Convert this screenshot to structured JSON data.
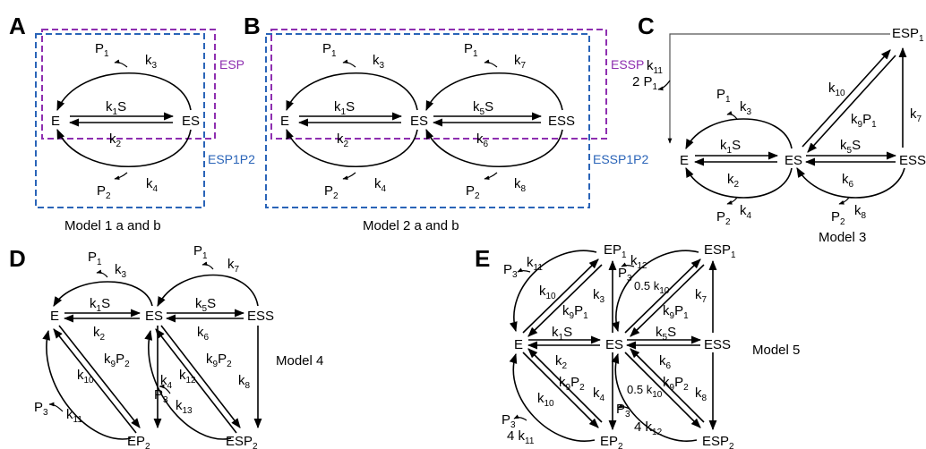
{
  "panels": {
    "A": "A",
    "B": "B",
    "C": "C",
    "D": "D",
    "E": "E"
  },
  "captions": {
    "model1": "Model 1 a and b",
    "model2": "Model 2 a and b",
    "model3": "Model 3",
    "model4": "Model 4",
    "model5": "Model 5"
  },
  "boxes": {
    "esp": "ESP",
    "esp1p2": "ESP1P2",
    "essp": "ESSP",
    "essp1p2": "ESSP1P2"
  },
  "species": {
    "E": "E",
    "ES": "ES",
    "ESS": "ESS",
    "P": "P",
    "EP": "EP",
    "ESP": "ESP",
    "sub1": "1",
    "sub2": "2",
    "sub3": "3"
  },
  "rates": {
    "k": "k",
    "S": "S",
    "n1": "1",
    "n2": "2",
    "n3": "3",
    "n4": "4",
    "n5": "5",
    "n6": "6",
    "n7": "7",
    "n8": "8",
    "n9": "9",
    "n10": "10",
    "n11": "11",
    "n12": "12",
    "n13": "13",
    "two": "2 ",
    "four": "4 ",
    "half": "0.5 "
  }
}
